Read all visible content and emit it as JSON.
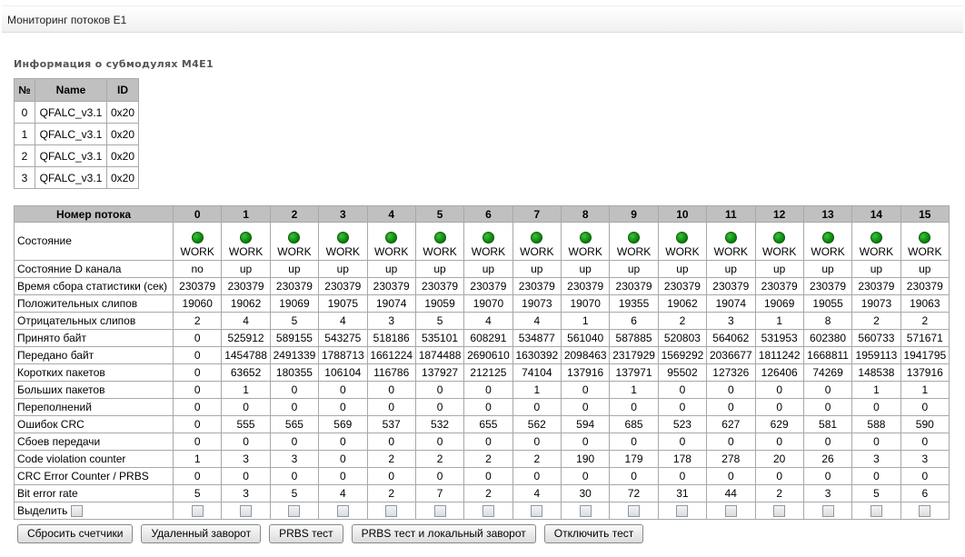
{
  "title": "Мониторинг потоков E1",
  "modules": {
    "heading": "Информация о субмодулях M4E1",
    "headers": [
      "№",
      "Name",
      "ID"
    ],
    "rows": [
      [
        "0",
        "QFALC_v3.1",
        "0x20"
      ],
      [
        "1",
        "QFALC_v3.1",
        "0x20"
      ],
      [
        "2",
        "QFALC_v3.1",
        "0x20"
      ],
      [
        "3",
        "QFALC_v3.1",
        "0x20"
      ]
    ]
  },
  "streams": {
    "header_label": "Номер потока",
    "numbers": [
      "0",
      "1",
      "2",
      "3",
      "4",
      "5",
      "6",
      "7",
      "8",
      "9",
      "10",
      "11",
      "12",
      "13",
      "14",
      "15"
    ],
    "state_label": "Состояние",
    "state_color": "#0a8a0a",
    "states": [
      "WORK",
      "WORK",
      "WORK",
      "WORK",
      "WORK",
      "WORK",
      "WORK",
      "WORK",
      "WORK",
      "WORK",
      "WORK",
      "WORK",
      "WORK",
      "WORK",
      "WORK",
      "WORK"
    ],
    "rows": [
      {
        "label": "Состояние D канала",
        "values": [
          "no",
          "up",
          "up",
          "up",
          "up",
          "up",
          "up",
          "up",
          "up",
          "up",
          "up",
          "up",
          "up",
          "up",
          "up",
          "up"
        ]
      },
      {
        "label": "Время сбора статистики (сек)",
        "values": [
          "230379",
          "230379",
          "230379",
          "230379",
          "230379",
          "230379",
          "230379",
          "230379",
          "230379",
          "230379",
          "230379",
          "230379",
          "230379",
          "230379",
          "230379",
          "230379"
        ]
      },
      {
        "label": "Положительных слипов",
        "values": [
          "19060",
          "19062",
          "19069",
          "19075",
          "19074",
          "19059",
          "19070",
          "19073",
          "19070",
          "19355",
          "19062",
          "19074",
          "19069",
          "19055",
          "19073",
          "19063"
        ]
      },
      {
        "label": "Отрицательных слипов",
        "values": [
          "2",
          "4",
          "5",
          "4",
          "3",
          "5",
          "4",
          "4",
          "1",
          "6",
          "2",
          "3",
          "1",
          "8",
          "2",
          "2"
        ]
      },
      {
        "label": "Принято байт",
        "values": [
          "0",
          "525912",
          "589155",
          "543275",
          "518186",
          "535101",
          "608291",
          "534877",
          "561040",
          "587885",
          "520803",
          "564062",
          "531953",
          "602380",
          "560733",
          "571671"
        ]
      },
      {
        "label": "Передано байт",
        "values": [
          "0",
          "1454788",
          "2491339",
          "1788713",
          "1661224",
          "1874488",
          "2690610",
          "1630392",
          "2098463",
          "2317929",
          "1569292",
          "2036677",
          "1811242",
          "1668811",
          "1959113",
          "1941795"
        ]
      },
      {
        "label": "Коротких пакетов",
        "values": [
          "0",
          "63652",
          "180355",
          "106104",
          "116786",
          "137927",
          "212125",
          "74104",
          "137916",
          "137971",
          "95502",
          "127326",
          "126406",
          "74269",
          "148538",
          "137916"
        ]
      },
      {
        "label": "Больших пакетов",
        "values": [
          "0",
          "1",
          "0",
          "0",
          "0",
          "0",
          "0",
          "1",
          "0",
          "1",
          "0",
          "0",
          "0",
          "0",
          "1",
          "1"
        ]
      },
      {
        "label": "Переполнений",
        "values": [
          "0",
          "0",
          "0",
          "0",
          "0",
          "0",
          "0",
          "0",
          "0",
          "0",
          "0",
          "0",
          "0",
          "0",
          "0",
          "0"
        ]
      },
      {
        "label": "Ошибок CRC",
        "values": [
          "0",
          "555",
          "565",
          "569",
          "537",
          "532",
          "655",
          "562",
          "594",
          "685",
          "523",
          "627",
          "629",
          "581",
          "588",
          "590"
        ]
      },
      {
        "label": "Сбоев передачи",
        "values": [
          "0",
          "0",
          "0",
          "0",
          "0",
          "0",
          "0",
          "0",
          "0",
          "0",
          "0",
          "0",
          "0",
          "0",
          "0",
          "0"
        ]
      },
      {
        "label": "Code violation counter",
        "values": [
          "1",
          "3",
          "3",
          "0",
          "2",
          "2",
          "2",
          "2",
          "190",
          "179",
          "178",
          "278",
          "20",
          "26",
          "3",
          "3"
        ]
      },
      {
        "label": "CRC Error Counter / PRBS",
        "values": [
          "0",
          "0",
          "0",
          "0",
          "0",
          "0",
          "0",
          "0",
          "0",
          "0",
          "0",
          "0",
          "0",
          "0",
          "0",
          "0"
        ]
      },
      {
        "label": "Bit error rate",
        "values": [
          "5",
          "3",
          "5",
          "4",
          "2",
          "7",
          "2",
          "4",
          "30",
          "72",
          "31",
          "44",
          "2",
          "3",
          "5",
          "6"
        ]
      }
    ],
    "select_label": "Выделить"
  },
  "buttons": {
    "reset": "Сбросить счетчики",
    "remote_loop": "Удаленный заворот",
    "prbs": "PRBS тест",
    "prbs_local": "PRBS тест и локальный заворот",
    "disable": "Отключить тест"
  }
}
